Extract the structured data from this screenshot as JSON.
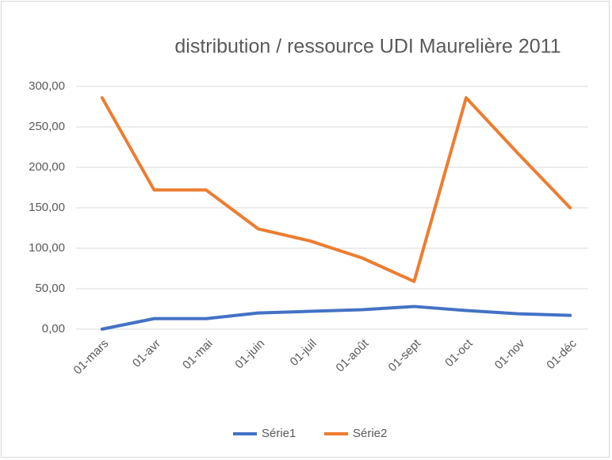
{
  "chart_data": {
    "type": "line",
    "title": "distribution / ressource UDI Maurelière 2011",
    "categories": [
      "01-mars",
      "01-avr",
      "01-mai",
      "01-juin",
      "01-juil",
      "01-août",
      "01-sept",
      "01-oct",
      "01-nov",
      "01-déc"
    ],
    "series": [
      {
        "name": "Série1",
        "color": "#4472c4",
        "values": [
          0,
          13,
          13,
          20,
          22,
          24,
          28,
          23,
          19,
          17
        ]
      },
      {
        "name": "Série2",
        "color": "#ed7d31",
        "values": [
          286,
          172,
          172,
          124,
          109,
          88,
          59,
          286,
          217,
          150
        ]
      }
    ],
    "ylim": [
      0,
      300
    ],
    "yticks": [
      {
        "value": 0,
        "label": "0,00"
      },
      {
        "value": 50,
        "label": "50,00"
      },
      {
        "value": 100,
        "label": "100,00"
      },
      {
        "value": 150,
        "label": "150,00"
      },
      {
        "value": 200,
        "label": "200,00"
      },
      {
        "value": 250,
        "label": "250,00"
      },
      {
        "value": 300,
        "label": "300,00"
      }
    ],
    "grid": true,
    "legend": "bottom"
  }
}
